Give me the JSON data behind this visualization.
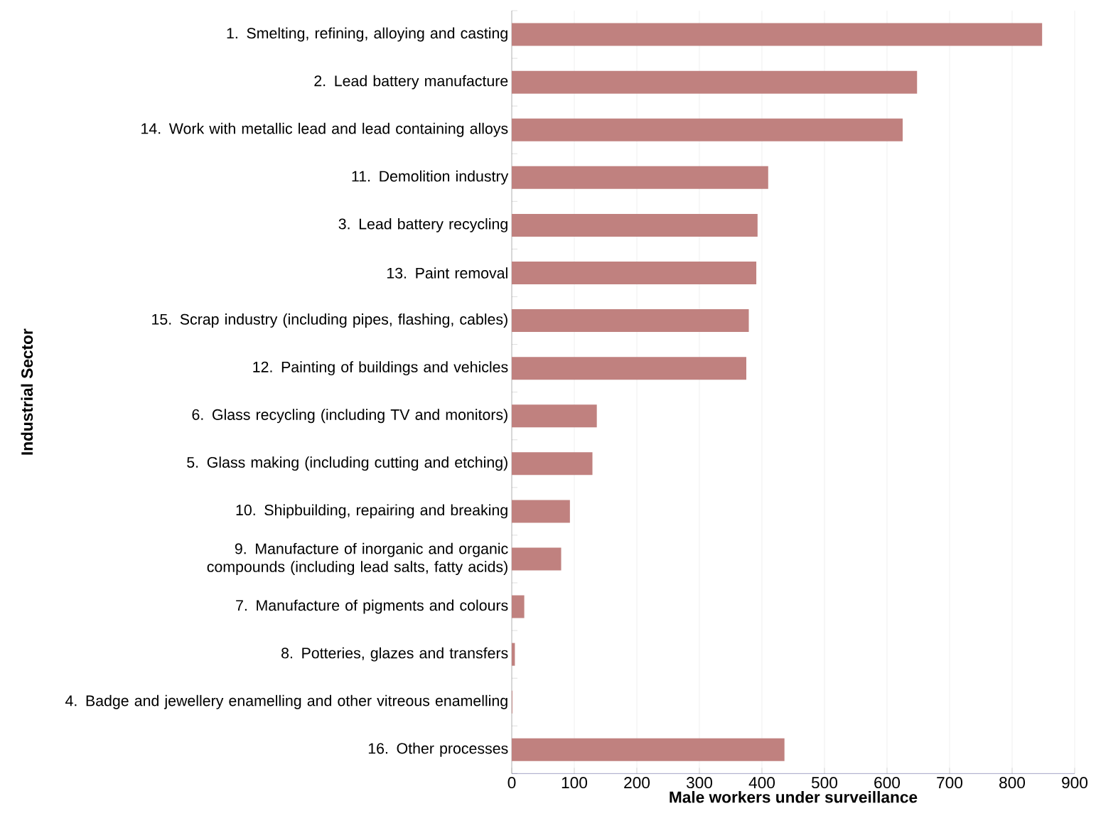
{
  "chart_data": {
    "type": "bar",
    "orientation": "horizontal",
    "xlabel": "Male workers under surveillance",
    "ylabel": "Industrial Sector",
    "categories": [
      "1. Smelting, refining, alloying and casting",
      "2. Lead battery manufacture",
      "14. Work with metallic lead and lead containing alloys",
      "11. Demolition industry",
      "3. Lead battery recycling",
      "13. Paint removal",
      "15. Scrap industry (including pipes, flashing, cables)",
      "12. Painting of buildings and vehicles",
      "6. Glass recycling (including TV and monitors)",
      "5. Glass making (including cutting and etching)",
      "10. Shipbuilding, repairing and breaking",
      "9. Manufacture of inorganic and organic compounds (including lead salts, fatty acids)",
      "7. Manufacture of pigments and colours",
      "8. Potteries, glazes and transfers",
      "4. Badge and jewellery enamelling and other vitreous enamelling",
      "16. Other processes"
    ],
    "values": [
      848,
      648,
      625,
      410,
      393,
      391,
      379,
      375,
      136,
      129,
      93,
      79,
      20,
      5,
      1,
      436
    ],
    "color": "#c0817f",
    "xlim": [
      0,
      900
    ],
    "xticks": [
      0,
      100,
      200,
      300,
      400,
      500,
      600,
      700,
      800,
      900
    ],
    "grid": "x"
  }
}
